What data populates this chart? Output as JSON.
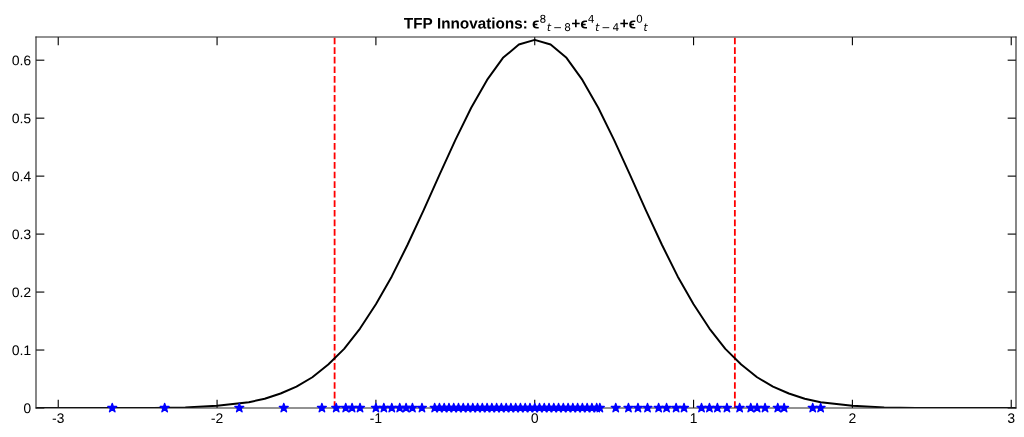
{
  "chart_data": {
    "type": "line",
    "title": "TFP Innovations: ϵ$^{8}$$_{t−8}$+ϵ$^{4}$$_{t−4}$+ϵ$^{0}$$_{t}$",
    "series": [
      {
        "color": "#000000",
        "marker": "none",
        "line_style": "solid",
        "x": [
          -3.14,
          -2.6,
          -2.4,
          -2.2,
          -2.0,
          -1.9,
          -1.8,
          -1.7,
          -1.6,
          -1.5,
          -1.4,
          -1.3,
          -1.2,
          -1.1,
          -1.0,
          -0.9,
          -0.8,
          -0.7,
          -0.6,
          -0.5,
          -0.4,
          -0.3,
          -0.2,
          -0.1,
          0,
          0.1,
          0.2,
          0.3,
          0.4,
          0.5,
          0.6,
          0.7,
          0.8,
          0.9,
          1.0,
          1.1,
          1.2,
          1.3,
          1.4,
          1.5,
          1.6,
          1.7,
          1.8,
          1.9,
          2.0,
          2.2,
          2.4,
          2.6,
          3.03
        ],
        "values": [
          0,
          0,
          0,
          0.001,
          0.004,
          0.007,
          0.01,
          0.016,
          0.025,
          0.037,
          0.053,
          0.075,
          0.102,
          0.137,
          0.179,
          0.227,
          0.282,
          0.341,
          0.402,
          0.462,
          0.518,
          0.566,
          0.604,
          0.627,
          0.635,
          0.627,
          0.604,
          0.566,
          0.518,
          0.462,
          0.402,
          0.341,
          0.282,
          0.227,
          0.179,
          0.137,
          0.102,
          0.075,
          0.053,
          0.037,
          0.025,
          0.016,
          0.01,
          0.007,
          0.004,
          0.001,
          0,
          0,
          0
        ]
      },
      {
        "type": "scatter",
        "color": "#0000ff",
        "marker": "star",
        "x": [
          -2.66,
          -2.33,
          -1.86,
          -1.58,
          -1.34,
          -1.25,
          -1.19,
          -1.15,
          -1.1,
          -1.0,
          -0.95,
          -0.9,
          -0.85,
          -0.81,
          -0.77,
          -0.71,
          -0.63,
          -0.6,
          -0.57,
          -0.54,
          -0.51,
          -0.48,
          -0.45,
          -0.42,
          -0.39,
          -0.36,
          -0.33,
          -0.3,
          -0.27,
          -0.24,
          -0.21,
          -0.18,
          -0.15,
          -0.12,
          -0.09,
          -0.06,
          -0.03,
          0,
          0.03,
          0.06,
          0.09,
          0.12,
          0.15,
          0.18,
          0.21,
          0.24,
          0.27,
          0.3,
          0.33,
          0.36,
          0.39,
          0.41,
          0.51,
          0.59,
          0.65,
          0.71,
          0.78,
          0.83,
          0.89,
          0.94,
          1.05,
          1.1,
          1.15,
          1.21,
          1.29,
          1.36,
          1.4,
          1.45,
          1.53,
          1.57,
          1.75,
          1.8
        ],
        "values": [
          0,
          0,
          0,
          0,
          0,
          0,
          0,
          0,
          0,
          0,
          0,
          0,
          0,
          0,
          0,
          0,
          0,
          0,
          0,
          0,
          0,
          0,
          0,
          0,
          0,
          0,
          0,
          0,
          0,
          0,
          0,
          0,
          0,
          0,
          0,
          0,
          0,
          0,
          0,
          0,
          0,
          0,
          0,
          0,
          0,
          0,
          0,
          0,
          0,
          0,
          0,
          0,
          0,
          0,
          0,
          0,
          0,
          0,
          0,
          0,
          0,
          0,
          0,
          0,
          0,
          0,
          0,
          0,
          0,
          0,
          0,
          0
        ]
      }
    ],
    "ref_lines": [
      {
        "axis": "x",
        "value": -1.26,
        "color": "#ff0000",
        "line_style": "dashed"
      },
      {
        "axis": "x",
        "value": 1.26,
        "color": "#ff0000",
        "line_style": "dashed"
      }
    ],
    "xlim": [
      -3.14,
      3.03
    ],
    "xticks": [
      -3,
      -2,
      -1,
      0,
      1,
      2,
      3
    ],
    "ylim": [
      0,
      0.64
    ],
    "yticks": [
      0,
      0.1,
      0.2,
      0.3,
      0.4,
      0.5,
      0.6
    ],
    "grid": false
  }
}
